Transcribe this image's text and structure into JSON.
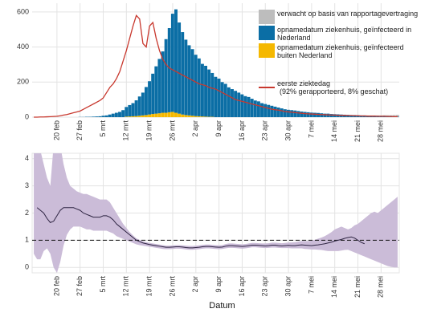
{
  "chart_data": [
    {
      "type": "bar",
      "categories": [
        null,
        null,
        null,
        null,
        null,
        null,
        null,
        "20 feb",
        null,
        null,
        null,
        null,
        null,
        null,
        "27 feb",
        null,
        null,
        null,
        null,
        null,
        null,
        "5 mrt",
        null,
        null,
        null,
        null,
        null,
        null,
        "12 mrt",
        null,
        null,
        null,
        null,
        null,
        null,
        "19 mrt",
        null,
        null,
        null,
        null,
        null,
        null,
        "26 mrt",
        null,
        null,
        null,
        null,
        null,
        null,
        "2 apr",
        null,
        null,
        null,
        null,
        null,
        null,
        "9 apr",
        null,
        null,
        null,
        null,
        null,
        null,
        "16 apr",
        null,
        null,
        null,
        null,
        null,
        null,
        "23 apr",
        null,
        null,
        null,
        null,
        null,
        null,
        "30 apr",
        null,
        null,
        null,
        null,
        null,
        null,
        "7 mei",
        null,
        null,
        null,
        null,
        null,
        null,
        "14 mei",
        null,
        null,
        null,
        null,
        null,
        null,
        "21 mei",
        null,
        null,
        null,
        null,
        null,
        null,
        "28 mei",
        null,
        null,
        null,
        null,
        null
      ],
      "series": [
        {
          "name": "verwacht op basis van rapportagevertraging",
          "color": "#bdbdbd",
          "values": [
            0,
            0,
            0,
            0,
            0,
            0,
            0,
            0,
            0,
            0,
            0,
            0,
            0,
            0,
            0,
            0,
            0,
            0,
            0,
            0,
            0,
            0,
            0,
            0,
            0,
            0,
            0,
            0,
            0,
            0,
            0,
            0,
            0,
            0,
            0,
            0,
            0,
            0,
            0,
            0,
            0,
            0,
            0,
            0,
            0,
            0,
            0,
            0,
            0,
            0,
            0,
            0,
            0,
            0,
            0,
            0,
            0,
            0,
            0,
            0,
            0,
            0,
            0,
            0,
            0,
            0,
            0,
            0,
            0,
            0,
            0,
            0,
            0,
            0,
            0,
            0,
            0,
            0,
            0,
            0,
            0,
            0,
            0,
            0,
            0,
            0,
            0,
            0,
            0,
            0,
            0,
            0,
            0,
            0,
            0,
            0,
            0,
            0,
            0,
            0,
            1,
            1,
            1,
            2,
            2,
            3,
            4,
            5,
            6,
            8,
            10
          ]
        },
        {
          "name": "opnamedatum ziekenhuis, geïnfecteerd in Nederland",
          "color": "#0b6ea5",
          "values": [
            0,
            0,
            0,
            0,
            0,
            0,
            0,
            0,
            0,
            0,
            0,
            0,
            0,
            0,
            1,
            1,
            2,
            2,
            3,
            4,
            5,
            8,
            10,
            15,
            20,
            25,
            30,
            40,
            55,
            65,
            75,
            90,
            110,
            130,
            160,
            190,
            230,
            270,
            310,
            350,
            420,
            480,
            560,
            590,
            520,
            470,
            430,
            400,
            380,
            350,
            330,
            300,
            290,
            270,
            250,
            230,
            220,
            200,
            190,
            170,
            160,
            150,
            140,
            130,
            120,
            115,
            105,
            95,
            90,
            80,
            75,
            70,
            65,
            60,
            55,
            50,
            45,
            42,
            40,
            38,
            35,
            32,
            30,
            28,
            26,
            25,
            24,
            22,
            20,
            20,
            18,
            17,
            16,
            15,
            14,
            13,
            12,
            12,
            11,
            10,
            10,
            9,
            9,
            8,
            8,
            7,
            7,
            6,
            5,
            4,
            3
          ]
        },
        {
          "name": "opnamedatum ziekenhuis, geïnfecteerd buiten Nederland",
          "color": "#f5b800",
          "values": [
            0,
            0,
            0,
            0,
            0,
            0,
            0,
            0,
            0,
            0,
            0,
            0,
            0,
            0,
            0,
            0,
            0,
            0,
            0,
            0,
            0,
            0,
            0,
            0,
            0,
            0,
            0,
            0,
            3,
            4,
            5,
            6,
            8,
            10,
            12,
            15,
            18,
            20,
            22,
            25,
            25,
            28,
            30,
            25,
            20,
            15,
            12,
            10,
            8,
            6,
            5,
            4,
            3,
            2,
            2,
            0,
            0,
            0,
            0,
            0,
            0,
            0,
            0,
            0,
            0,
            0,
            0,
            0,
            0,
            0,
            0,
            0,
            0,
            0,
            0,
            0,
            0,
            0,
            0,
            0,
            0,
            0,
            0,
            0,
            0,
            0,
            0,
            0,
            0,
            0,
            0,
            0,
            0,
            0,
            0,
            0,
            0,
            0,
            0,
            0,
            0,
            0,
            0,
            0,
            0,
            0,
            0,
            0,
            0,
            0,
            0
          ]
        },
        {
          "name": "eerste ziektedag",
          "type": "line",
          "color": "#c8382e",
          "note": "(92% gerapporteerd, 8% geschat)",
          "values": [
            0,
            0,
            1,
            1,
            2,
            3,
            4,
            5,
            8,
            12,
            15,
            20,
            25,
            30,
            35,
            45,
            55,
            65,
            75,
            85,
            95,
            110,
            140,
            170,
            190,
            220,
            260,
            320,
            380,
            450,
            520,
            580,
            560,
            420,
            400,
            520,
            540,
            450,
            380,
            330,
            300,
            280,
            270,
            260,
            250,
            240,
            230,
            220,
            210,
            200,
            190,
            185,
            180,
            170,
            165,
            160,
            150,
            140,
            130,
            120,
            110,
            100,
            95,
            90,
            85,
            80,
            75,
            70,
            65,
            60,
            55,
            50,
            45,
            42,
            40,
            36,
            32,
            30,
            28,
            26,
            24,
            22,
            20,
            19,
            18,
            17,
            16,
            15,
            14,
            13,
            12,
            12,
            11,
            10,
            10,
            9,
            9,
            8,
            8,
            7,
            7,
            6,
            6,
            6,
            5,
            5,
            5,
            4,
            4,
            3,
            3
          ]
        }
      ],
      "ylim": [
        0,
        650
      ],
      "yticks": [
        0,
        200,
        400,
        600
      ],
      "grid": true
    },
    {
      "type": "line",
      "x_label": "Datum",
      "categories": [
        null,
        null,
        null,
        null,
        null,
        null,
        null,
        "20 feb",
        null,
        null,
        null,
        null,
        null,
        null,
        "27 feb",
        null,
        null,
        null,
        null,
        null,
        null,
        "5 mrt",
        null,
        null,
        null,
        null,
        null,
        null,
        "12 mrt",
        null,
        null,
        null,
        null,
        null,
        null,
        "19 mrt",
        null,
        null,
        null,
        null,
        null,
        null,
        "26 mrt",
        null,
        null,
        null,
        null,
        null,
        null,
        "2 apr",
        null,
        null,
        null,
        null,
        null,
        null,
        "9 apr",
        null,
        null,
        null,
        null,
        null,
        null,
        "16 apr",
        null,
        null,
        null,
        null,
        null,
        null,
        "23 apr",
        null,
        null,
        null,
        null,
        null,
        null,
        "30 apr",
        null,
        null,
        null,
        null,
        null,
        null,
        "7 mei",
        null,
        null,
        null,
        null,
        null,
        null,
        "14 mei",
        null,
        null,
        null,
        null,
        null,
        null,
        "21 mei",
        null,
        null,
        null,
        null,
        null,
        null,
        "28 mei",
        null,
        null,
        null,
        null,
        null
      ],
      "series": [
        {
          "color": "#2e2442",
          "band_color": "#cbbcd8",
          "values": [
            null,
            2.2,
            2.1,
            2.0,
            1.8,
            1.65,
            1.7,
            1.9,
            2.1,
            2.2,
            2.2,
            2.2,
            2.2,
            2.15,
            2.1,
            2.0,
            1.95,
            1.9,
            1.85,
            1.85,
            1.85,
            1.9,
            1.9,
            1.85,
            1.75,
            1.6,
            1.5,
            1.4,
            1.3,
            1.2,
            1.1,
            1.0,
            0.95,
            0.9,
            0.87,
            0.84,
            0.82,
            0.8,
            0.78,
            0.76,
            0.74,
            0.74,
            0.75,
            0.76,
            0.76,
            0.75,
            0.73,
            0.72,
            0.72,
            0.73,
            0.74,
            0.76,
            0.77,
            0.77,
            0.76,
            0.75,
            0.74,
            0.75,
            0.78,
            0.8,
            0.8,
            0.79,
            0.78,
            0.77,
            0.78,
            0.8,
            0.82,
            0.82,
            0.81,
            0.8,
            0.79,
            0.8,
            0.82,
            0.82,
            0.8,
            0.79,
            0.8,
            0.81,
            0.8,
            0.8,
            0.82,
            0.83,
            0.82,
            0.81,
            0.8,
            0.82,
            0.83,
            0.85,
            0.87,
            0.9,
            0.93,
            0.97,
            1.0,
            1.03,
            1.07,
            1.1,
            1.12,
            1.08,
            1.0,
            0.92,
            0.87,
            null,
            null,
            null,
            null,
            null,
            null,
            null,
            null,
            null,
            null
          ],
          "upper": [
            4.5,
            4.6,
            4.3,
            3.8,
            3.3,
            3.0,
            4.5,
            5.0,
            4.5,
            3.8,
            3.3,
            3.0,
            2.9,
            2.8,
            2.75,
            2.7,
            2.7,
            2.65,
            2.6,
            2.55,
            2.5,
            2.5,
            2.5,
            2.4,
            2.2,
            2.0,
            1.8,
            1.6,
            1.45,
            1.3,
            1.18,
            1.07,
            1.01,
            0.96,
            0.93,
            0.9,
            0.88,
            0.86,
            0.84,
            0.82,
            0.8,
            0.8,
            0.81,
            0.82,
            0.82,
            0.81,
            0.8,
            0.79,
            0.79,
            0.8,
            0.81,
            0.83,
            0.84,
            0.84,
            0.83,
            0.82,
            0.81,
            0.82,
            0.86,
            0.88,
            0.88,
            0.87,
            0.86,
            0.85,
            0.86,
            0.88,
            0.9,
            0.9,
            0.89,
            0.88,
            0.88,
            0.89,
            0.91,
            0.91,
            0.9,
            0.89,
            0.9,
            0.92,
            0.92,
            0.93,
            0.95,
            0.97,
            0.97,
            0.97,
            0.98,
            1.02,
            1.06,
            1.1,
            1.15,
            1.22,
            1.3,
            1.4,
            1.45,
            1.5,
            1.45,
            1.4,
            1.45,
            1.55,
            1.6,
            1.7,
            1.8,
            1.9,
            2.0,
            2.05,
            2.0,
            2.1,
            2.2,
            2.3,
            2.4,
            2.5,
            2.6
          ],
          "lower": [
            0.5,
            0.3,
            0.3,
            0.6,
            0.7,
            0.5,
            0.0,
            -0.2,
            0.2,
            0.8,
            1.2,
            1.4,
            1.5,
            1.5,
            1.5,
            1.45,
            1.4,
            1.4,
            1.35,
            1.35,
            1.35,
            1.35,
            1.35,
            1.3,
            1.25,
            1.15,
            1.1,
            1.05,
            1.0,
            0.95,
            0.9,
            0.85,
            0.82,
            0.8,
            0.78,
            0.76,
            0.74,
            0.72,
            0.7,
            0.68,
            0.67,
            0.67,
            0.68,
            0.69,
            0.69,
            0.68,
            0.66,
            0.65,
            0.65,
            0.66,
            0.67,
            0.69,
            0.7,
            0.7,
            0.69,
            0.68,
            0.67,
            0.68,
            0.7,
            0.72,
            0.72,
            0.71,
            0.7,
            0.69,
            0.7,
            0.72,
            0.74,
            0.74,
            0.73,
            0.72,
            0.71,
            0.72,
            0.73,
            0.73,
            0.72,
            0.71,
            0.71,
            0.71,
            0.7,
            0.7,
            0.7,
            0.7,
            0.68,
            0.67,
            0.66,
            0.66,
            0.65,
            0.64,
            0.62,
            0.6,
            0.6,
            0.6,
            0.6,
            0.62,
            0.64,
            0.65,
            0.6,
            0.55,
            0.5,
            0.45,
            0.4,
            0.35,
            0.3,
            0.25,
            0.2,
            0.15,
            0.1,
            0.05,
            0.02,
            0,
            0
          ]
        }
      ],
      "ylim": [
        -0.2,
        4.2
      ],
      "yticks": [
        0,
        1,
        2,
        3,
        4
      ],
      "reference_line": 1,
      "grid": true
    }
  ]
}
